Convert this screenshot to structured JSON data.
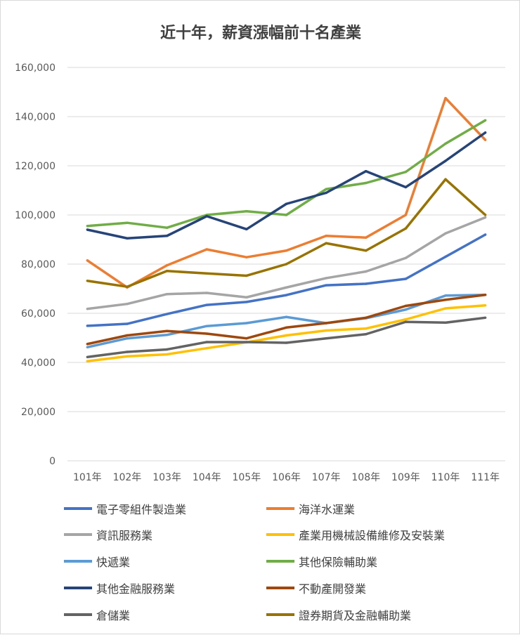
{
  "chart_data": {
    "type": "line",
    "title": "近十年，薪資漲幅前十名產業",
    "categories": [
      "101年",
      "102年",
      "103年",
      "104年",
      "105年",
      "106年",
      "107年",
      "108年",
      "109年",
      "110年",
      "111年"
    ],
    "ylim": [
      0,
      160000
    ],
    "yticks": [
      0,
      20000,
      40000,
      60000,
      80000,
      100000,
      120000,
      140000,
      160000
    ],
    "ytick_labels": [
      "0",
      "20,000",
      "40,000",
      "60,000",
      "80,000",
      "100,000",
      "120,000",
      "140,000",
      "160,000"
    ],
    "grid": true,
    "legend": "bottom",
    "series": [
      {
        "name": "電子零組件製造業",
        "color": "#4472C4",
        "values": [
          54900,
          55700,
          59700,
          63400,
          64600,
          67400,
          71400,
          72000,
          74000,
          83000,
          92000
        ]
      },
      {
        "name": "海洋水運業",
        "color": "#ED7D31",
        "values": [
          81500,
          70500,
          79500,
          86000,
          82800,
          85500,
          91500,
          90800,
          100000,
          147500,
          130500
        ]
      },
      {
        "name": "資訊服務業",
        "color": "#A5A5A5",
        "values": [
          61800,
          63800,
          67800,
          68300,
          66500,
          70500,
          74300,
          77000,
          82500,
          92500,
          99000
        ]
      },
      {
        "name": "產業用機械設備維修及安裝業",
        "color": "#FFC000",
        "values": [
          40500,
          42500,
          43300,
          45800,
          48200,
          51000,
          53000,
          53800,
          57500,
          62000,
          63200
        ]
      },
      {
        "name": "快遞業",
        "color": "#5B9BD5",
        "values": [
          46200,
          49800,
          51200,
          54800,
          56000,
          58500,
          56000,
          58000,
          61500,
          67200,
          67500
        ]
      },
      {
        "name": "其他保險輔助業",
        "color": "#70AD47",
        "values": [
          95500,
          96800,
          94800,
          100000,
          101500,
          100000,
          110500,
          113000,
          117500,
          129000,
          138500
        ]
      },
      {
        "name": "其他金融服務業",
        "color": "#264478",
        "values": [
          94000,
          90500,
          91500,
          99500,
          94200,
          104500,
          109000,
          117800,
          111300,
          122000,
          133500
        ]
      },
      {
        "name": "不動產開發業",
        "color": "#9E480E",
        "values": [
          47500,
          51000,
          52800,
          51700,
          49800,
          54200,
          56000,
          58200,
          63000,
          65500,
          67500
        ]
      },
      {
        "name": "倉儲業",
        "color": "#636363",
        "values": [
          42200,
          44300,
          45300,
          48300,
          48300,
          48000,
          49800,
          51500,
          56500,
          56200,
          58200
        ]
      },
      {
        "name": "證券期貨及金融輔助業",
        "color": "#997300",
        "values": [
          73200,
          70800,
          77200,
          76200,
          75300,
          80000,
          88500,
          85500,
          94500,
          114500,
          100000
        ]
      }
    ]
  }
}
